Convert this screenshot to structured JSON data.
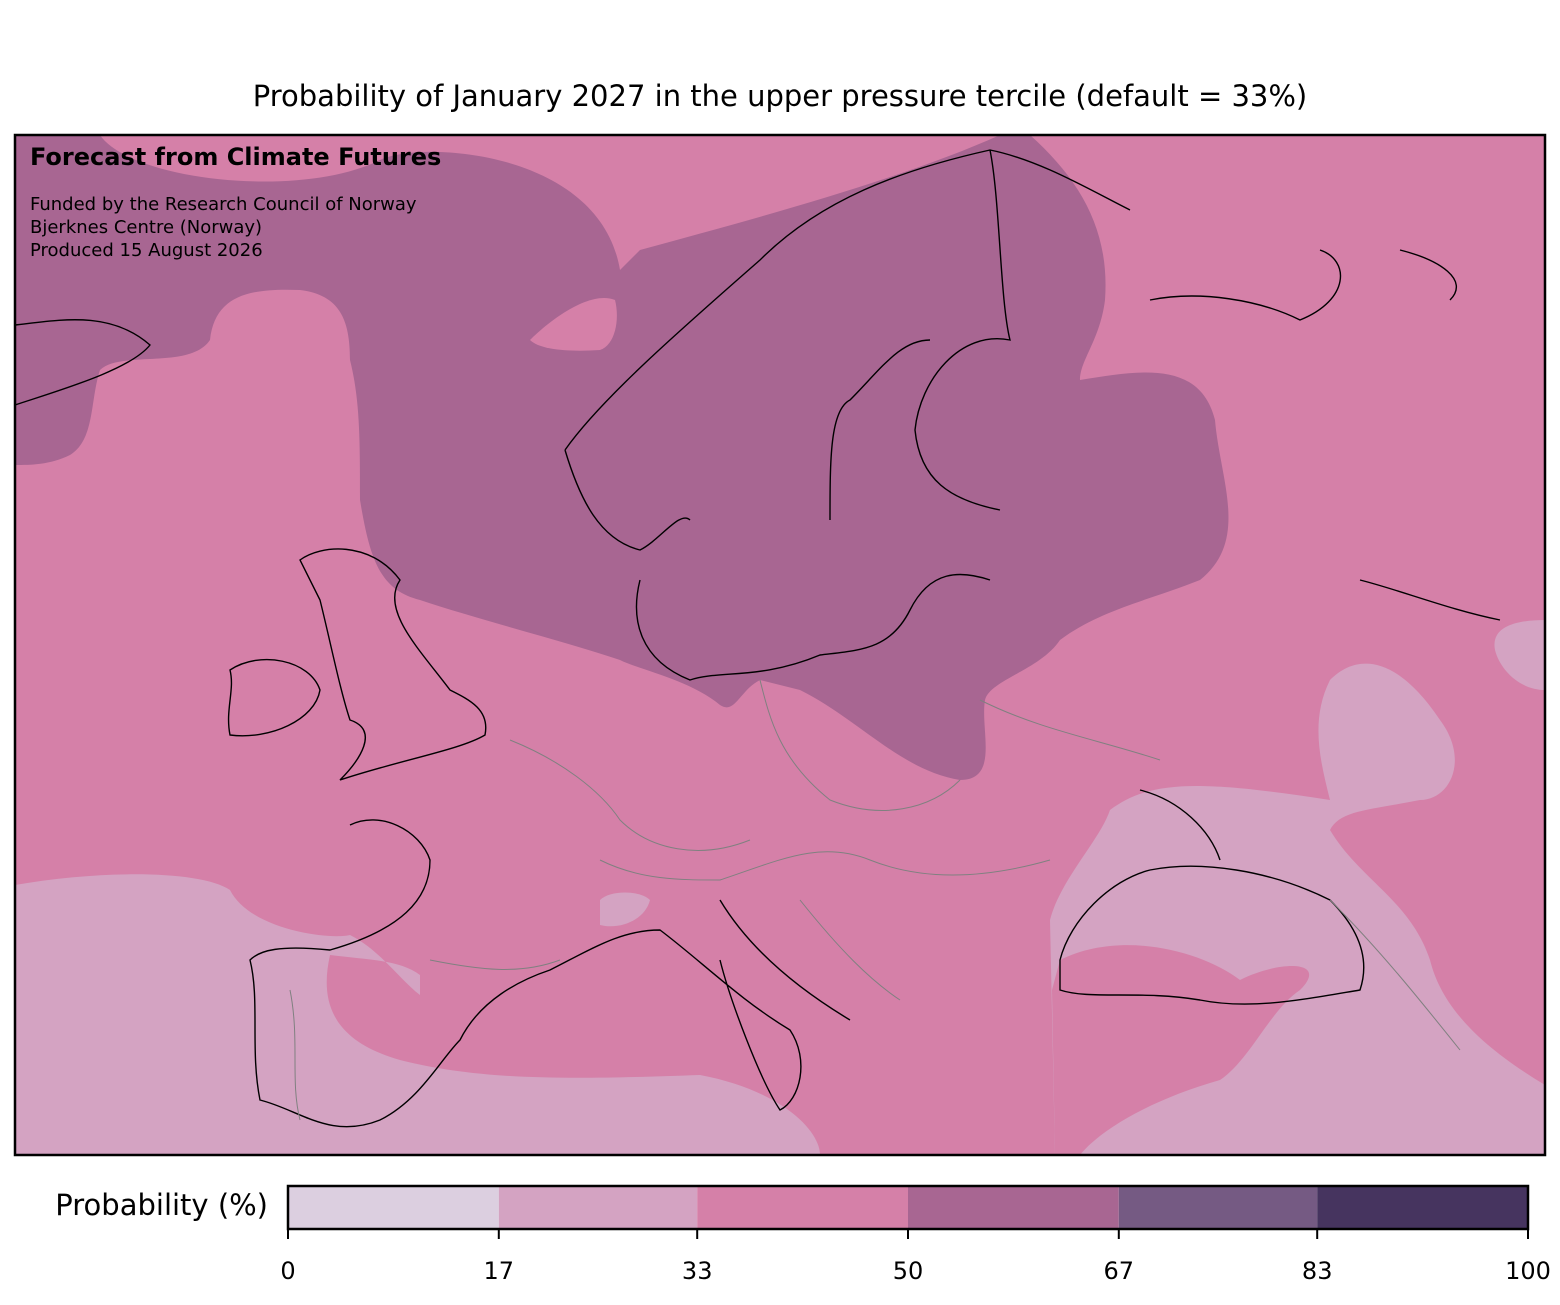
{
  "title": "Probability of January 2027 in the upper pressure tercile (default = 33%)",
  "annotations": {
    "heading": "Forecast from Climate Futures",
    "lines": [
      "Funded by the Research Council of Norway",
      "Bjerknes Centre (Norway)",
      "Produced 15 August 2026"
    ]
  },
  "colorbar": {
    "label": "Probability (%)",
    "lim": [
      0,
      100
    ],
    "ticks": [
      0,
      17,
      33,
      50,
      67,
      83,
      100
    ],
    "colors": [
      "#dccfe0",
      "#d4a3c2",
      "#d580a8",
      "#a86692",
      "#755a83",
      "#46345f"
    ]
  }
}
